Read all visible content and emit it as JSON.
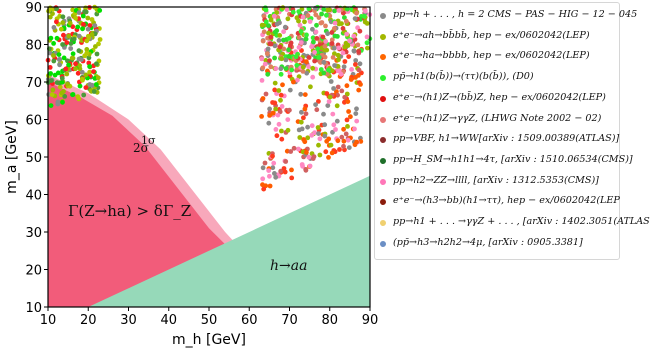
{
  "chart_data": {
    "type": "scatter",
    "xlabel": "m_h [GeV]",
    "ylabel": "m_a [GeV]",
    "xlim": [
      10,
      90
    ],
    "ylim": [
      10,
      90
    ],
    "xticks": [
      "10",
      "20",
      "30",
      "40",
      "50",
      "60",
      "70",
      "80",
      "90"
    ],
    "yticks": [
      "10",
      "20",
      "30",
      "40",
      "50",
      "60",
      "70",
      "80",
      "90"
    ],
    "grid": false,
    "legend_position": "right",
    "regions": [
      {
        "name": "excluded_Z",
        "label": "Γ(Z→ha) > δΓ_Z",
        "color": "#f25c7a",
        "boundary": [
          [
            10,
            70
          ],
          [
            18,
            66
          ],
          [
            26,
            61
          ],
          [
            34,
            53
          ],
          [
            42,
            42
          ],
          [
            50,
            31
          ],
          [
            57.5,
            23
          ]
        ]
      },
      {
        "name": "band_2sigma_1sigma",
        "labels": [
          "2σ",
          "1σ"
        ],
        "color": "#f8a8bb",
        "boundary": [
          [
            10,
            72
          ],
          [
            20,
            67
          ],
          [
            30,
            60
          ],
          [
            38,
            52
          ],
          [
            46,
            41
          ],
          [
            54,
            30
          ],
          [
            60,
            23
          ]
        ]
      },
      {
        "name": "kinematic",
        "label": "h→aa",
        "color": "#96d9b9",
        "boundary": [
          [
            20,
            10
          ],
          [
            90,
            45
          ]
        ]
      }
    ],
    "scatter_regions": [
      {
        "x_range": [
          10,
          23
        ],
        "y_range": [
          63,
          90
        ],
        "colors": [
          "#9cb900",
          "#8a8a8a",
          "#ff1f1f",
          "#4a9a3a",
          "#b3c800",
          "#00e000"
        ]
      },
      {
        "x_range": [
          63,
          88
        ],
        "y_range": [
          40,
          80
        ],
        "colors": [
          "#ff5c00",
          "#8a8a8a",
          "#ff88c2",
          "#9cb900",
          "#ff3c1f",
          "#d06060"
        ]
      },
      {
        "x_range": [
          63,
          90
        ],
        "y_range": [
          72,
          90
        ],
        "colors": [
          "#34f034",
          "#2fdc2f",
          "#8a8a8a",
          "#e03c3c",
          "#ff88c2",
          "#9cb900",
          "#e08060"
        ]
      }
    ],
    "legend": [
      {
        "label": "pp→h + . . . , h = 2 CMS − PAS − HIG − 12 − 045",
        "color": "#8a8a8a"
      },
      {
        "label": "e⁺e⁻→ah→bb̄bb̄, hep − ex/0602042(LEP)",
        "color": "#a3b700"
      },
      {
        "label": "e⁺e⁻→ha→bbbb, hep − ex/0602042(LEP)",
        "color": "#ff6600"
      },
      {
        "label": "pp̄→h1(b(b̄))→(ττ)(b(b̄)), (D0)",
        "color": "#2cf02c"
      },
      {
        "label": "e⁺e⁻→(h1)Z→(bb̄)Z, hep − ex/0602042(LEP)",
        "color": "#e01010"
      },
      {
        "label": "e⁺e⁻→(h1)Z→γγZ, (LHWG Note 2002 − 02)",
        "color": "#e77777"
      },
      {
        "label": "pp→VBF, h1→WW[arXiv : 1509.00389(ATLAS)]",
        "color": "#8b2c2c"
      },
      {
        "label": "pp→H_SM→h1h1→4τ, [arXiv : 1510.06534(CMS)]",
        "color": "#1f6f2a"
      },
      {
        "label": "pp→h2→ZZ→llll, [arXiv : 1312.5353(CMS)]",
        "color": "#ff77b8"
      },
      {
        "label": "e⁺e⁻→(h3→bb)(h1→ττ), hep − ex/0602042(LEP",
        "color": "#8b1c0c"
      },
      {
        "label": "pp→h1 + . . . →γγZ + . . . , [arXiv : 1402.3051(ATLAS",
        "color": "#f0d070"
      },
      {
        "label": "(pp̄→h3→h2h2→4μ, [arXiv : 0905.3381]",
        "color": "#6b8fc5"
      }
    ]
  }
}
